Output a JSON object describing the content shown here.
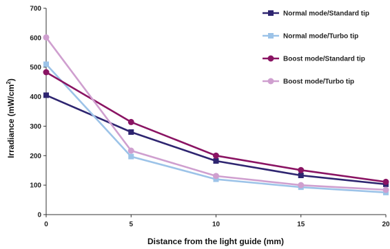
{
  "chart_data": {
    "type": "line",
    "xlabel": "Distance from the light guide (mm)",
    "ylabel_main": "Irradiance (mW/cm",
    "ylabel_sup": "2",
    "ylabel_end": ")",
    "xlim": [
      0,
      20
    ],
    "ylim": [
      0,
      700
    ],
    "x_ticks": [
      0,
      5,
      10,
      15,
      20
    ],
    "y_ticks": [
      0,
      100,
      200,
      300,
      400,
      500,
      600,
      700
    ],
    "grid": false,
    "legend_position": "top-right",
    "x": [
      0,
      5,
      10,
      15,
      20
    ],
    "series": [
      {
        "name": "Normal mode/Standard tip",
        "color": "#2e2570",
        "marker": "square",
        "values": [
          405,
          280,
          182,
          133,
          103
        ]
      },
      {
        "name": "Normal mode/Turbo tip",
        "color": "#9cc3e8",
        "marker": "square",
        "values": [
          510,
          197,
          120,
          93,
          75
        ]
      },
      {
        "name": "Boost mode/Standard tip",
        "color": "#8a1463",
        "marker": "circle",
        "values": [
          483,
          314,
          200,
          151,
          111
        ]
      },
      {
        "name": "Boost mode/Turbo tip",
        "color": "#cf9fcf",
        "marker": "circle",
        "values": [
          601,
          217,
          131,
          100,
          84
        ]
      }
    ]
  }
}
